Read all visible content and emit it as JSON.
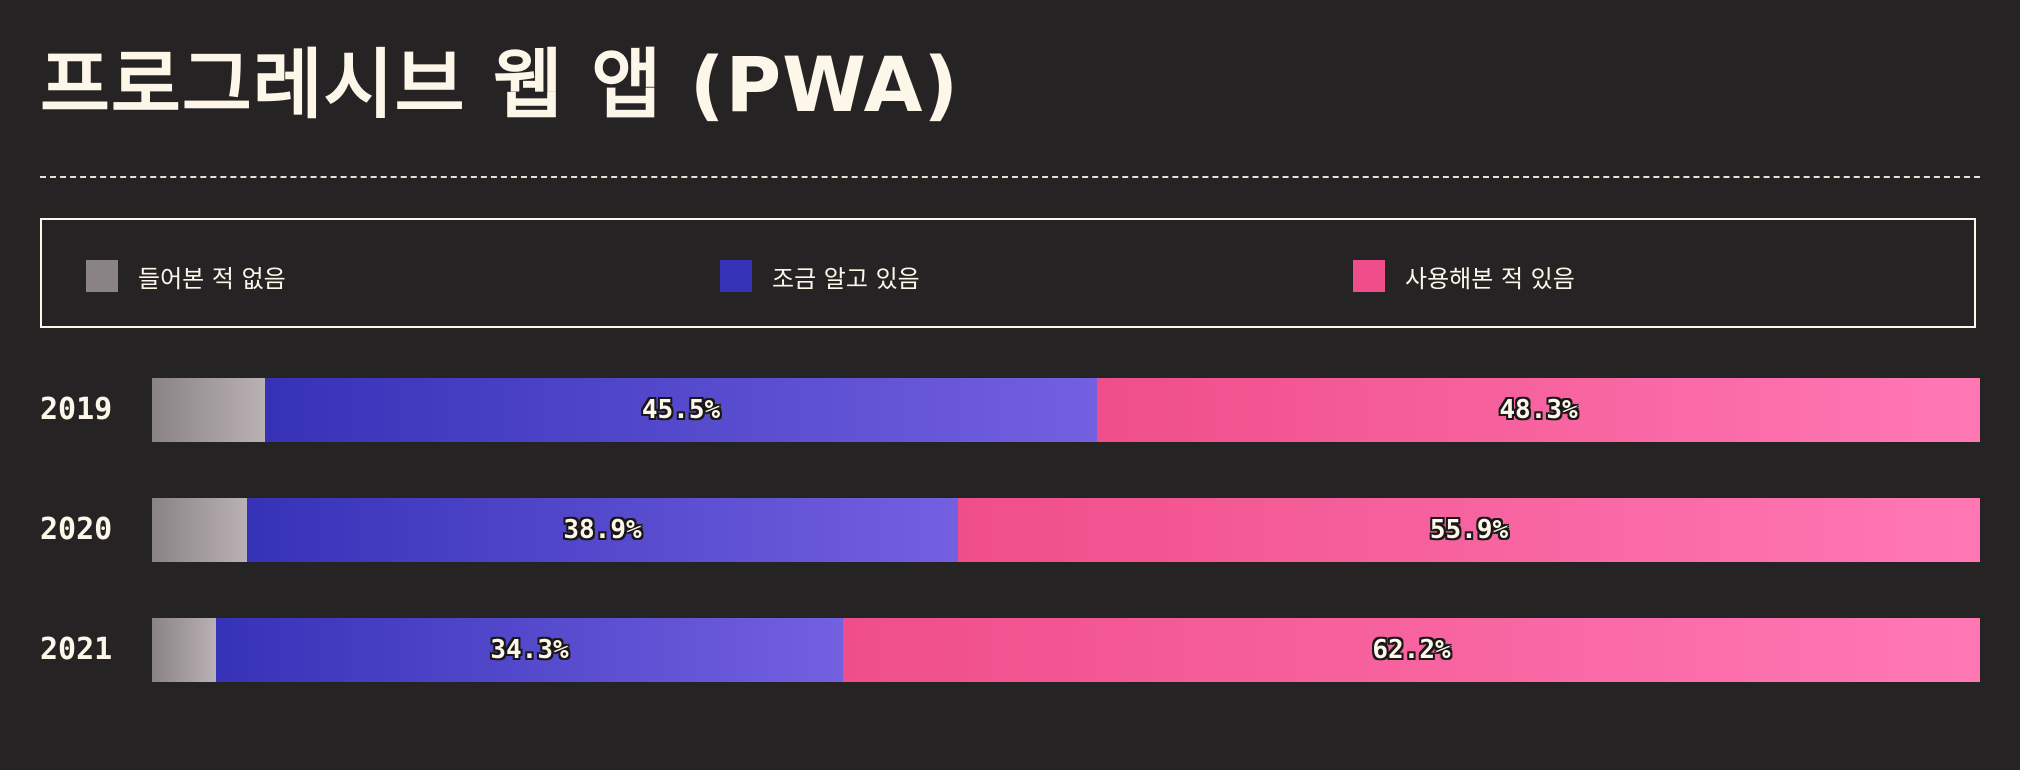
{
  "title": "프로그레시브 웹 앱 (PWA)",
  "colors": {
    "background": "#262324",
    "text": "#fdf7e9",
    "never_heard": [
      "#8a8386",
      "#b9b1b4"
    ],
    "know_a_little": [
      "#3632b8",
      "#7360e0"
    ],
    "used_it": [
      "#ef4e8a",
      "#ff78b4"
    ]
  },
  "legend": [
    {
      "label": "들어본 적 없음",
      "color": "#8a8386"
    },
    {
      "label": "조금 알고 있음",
      "color": "#3632b8"
    },
    {
      "label": "사용해본 적 있음",
      "color": "#ef4e8a"
    }
  ],
  "chart_data": {
    "type": "bar",
    "orientation": "horizontal",
    "stacked": true,
    "normalized_to_percent": true,
    "title": "프로그레시브 웹 앱 (PWA)",
    "categories": [
      "2019",
      "2020",
      "2021"
    ],
    "series": [
      {
        "name": "들어본 적 없음",
        "values": [
          6.2,
          5.2,
          3.5
        ],
        "show_label": false
      },
      {
        "name": "조금 알고 있음",
        "values": [
          45.5,
          38.9,
          34.3
        ],
        "show_label": true
      },
      {
        "name": "사용해본 적 있음",
        "values": [
          48.3,
          55.9,
          62.2
        ],
        "show_label": true
      }
    ],
    "value_labels": {
      "2019": [
        "",
        "45.5%",
        "48.3%"
      ],
      "2020": [
        "",
        "38.9%",
        "55.9%"
      ],
      "2021": [
        "",
        "34.3%",
        "62.2%"
      ]
    },
    "xlim": [
      0,
      100
    ],
    "legend_position": "top",
    "grid": false
  }
}
